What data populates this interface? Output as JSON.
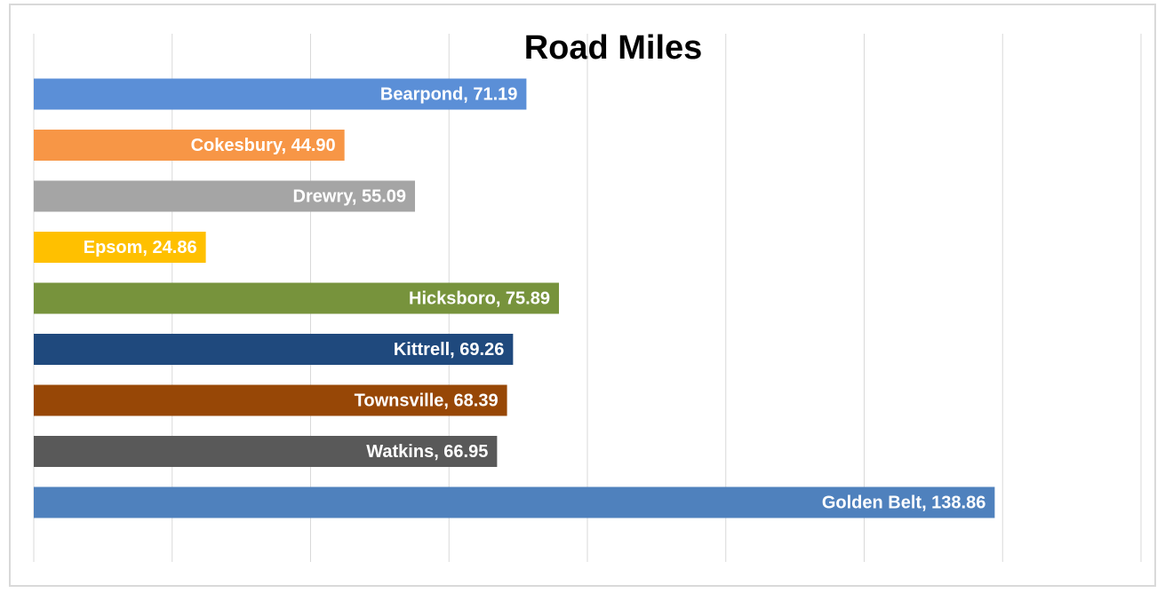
{
  "chart_data": {
    "type": "barh",
    "title": "Road Miles",
    "values": [
      71.19,
      44.9,
      55.09,
      24.86,
      75.89,
      69.26,
      68.39,
      66.95,
      138.86
    ],
    "value_labels": [
      "Bearpond, 71.19",
      "Cokesbury, 44.90",
      "Drewry, 55.09",
      "Epsom, 24.86",
      "Hicksboro, 75.89",
      "Kittrell, 69.26",
      "Townsville, 68.39",
      "Watkins, 66.95",
      "Golden Belt, 138.86"
    ],
    "colors": [
      "#5b8fd7",
      "#f79646",
      "#a5a5a5",
      "#ffc000",
      "#77933c",
      "#1f497d",
      "#974706",
      "#595959",
      "#4f81bd"
    ],
    "xlim": [
      0,
      160
    ],
    "xticks": [
      0,
      20,
      40,
      60,
      80,
      100,
      120,
      140,
      160
    ],
    "grid": true
  }
}
